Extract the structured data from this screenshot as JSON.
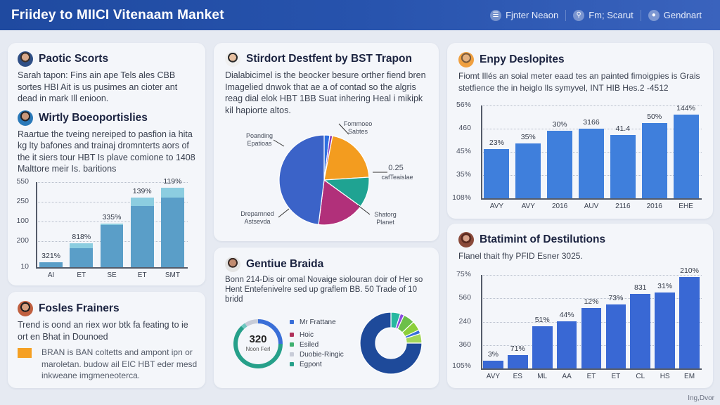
{
  "header": {
    "title": "Friidey to MIICI Vitenaam Manket",
    "actions": [
      {
        "label": "Fjnter Neaon",
        "icon": "filter-icon"
      },
      {
        "label": "Fm; Scarut",
        "icon": "search-icon"
      },
      {
        "label": "Gendnart",
        "icon": "user-icon"
      }
    ]
  },
  "cards": {
    "top_left": {
      "sections": [
        {
          "title": "Paotic Scorts",
          "text": "Sarah tapon: Fins ain ape Tels ales CBB sortes HBI Ait is us pusimes an cioter ant dead in mark Ill enioon."
        },
        {
          "title": "Wirtly Boeoportislies",
          "text": "Raartue the tveing nereiped to pasfion ia hita kg lty bafones and trainaj dromnterts aors of the it siers tour HBT Is plave comione to 1408 Malttore meir Is. baritions"
        }
      ]
    },
    "bottom_left": {
      "title": "Fosles Frainers",
      "text": "Trend is oond an riex wor btk fa feating to ie ort en Bhat in Dounoed",
      "note": "BRAN is BAN coltetts and ampont ipn or maroletan. budow ail EIC HBT eder mesd inkweane imgmeneoterca.",
      "note_swatch_color": "#f5a023"
    },
    "center_top": {
      "title": "Stirdort Destfent by BST Trapon",
      "text": "Dialabicimel is the beocker besure orther fiend bren Imagelied dnwok that ae a of contad so the algris reag dial elok HBT 1BB Suat inhering Heal i mikipk kil hapiorte altos."
    },
    "center_bottom": {
      "title": "Gentiue Braida",
      "text": "Bonn 214-Dis oir omal Novaige siolouran doir of Her so Hent Entefenivelre sed up graflem BB. 50 Trade of 10 bridd",
      "donut_value": "320",
      "donut_label": "Noon Ferl",
      "legend": [
        {
          "label": "Mr Frattane",
          "color": "#3a6fd8"
        },
        {
          "label": "Hoic",
          "color": "#b0315a"
        },
        {
          "label": "Esiled",
          "color": "#3fb070"
        },
        {
          "label": "Duobie-Ringic",
          "color": "#c8ccd8"
        },
        {
          "label": "Egpont",
          "color": "#26a08a"
        }
      ]
    },
    "right_top": {
      "title": "Enpy Deslopites",
      "text": "Fiomt Illés an soial meter eaad tes an painted fimoigpies is Grais stetfience the in heiglo lls symyvel, INT HIB Hes.2 -4512"
    },
    "right_bottom": {
      "title": "Btatimint of Destilutions",
      "text": "Flanel thait fhy PFID Esner 3025."
    }
  },
  "chart_data": [
    {
      "id": "left-stacked-bar",
      "type": "bar",
      "stacked": true,
      "title": "",
      "categories": [
        "AI",
        "ET",
        "SE",
        "ET",
        "SMT"
      ],
      "yticks": [
        "550",
        "250",
        "100",
        "200",
        "10"
      ],
      "series": [
        {
          "name": "base",
          "values": [
            15,
            58,
            130,
            190,
            215
          ],
          "color": "#5a9ec8"
        },
        {
          "name": "top",
          "values": [
            0,
            17,
            5,
            25,
            30
          ],
          "color": "#8ccde0"
        }
      ],
      "bar_labels": [
        "321%",
        "818%",
        "335%",
        "139%",
        "119%"
      ],
      "grid": true
    },
    {
      "id": "center-pie",
      "type": "pie",
      "slices": [
        {
          "label": "Poanding Epatioas",
          "value": 48,
          "color": "#3b63c8"
        },
        {
          "label": "Fommoeo Sabtes",
          "value": 2,
          "color": "#2f6fe0"
        },
        {
          "label": "",
          "value": 1,
          "color": "#8a3ab8"
        },
        {
          "label": "",
          "value": 21,
          "color": "#f39c1f"
        },
        {
          "label": "0.25 cafTeaislae",
          "value": 11,
          "color": "#1fa392"
        },
        {
          "label": "Shatorg Planet",
          "value": 17,
          "color": "#b1307a"
        }
      ],
      "labels": [
        "Poanding Epatioas",
        "Fommoeo Sabtes",
        "0.25",
        "cafTeaislae",
        "Shatorg Planet",
        "Dreparnned Astsevda"
      ]
    },
    {
      "id": "center-donut-ring",
      "type": "pie",
      "center_value": "320",
      "center_label": "Noon Ferl",
      "slices": [
        {
          "label": "Mr Frattane",
          "value": 25,
          "color": "#3a6fd8"
        },
        {
          "label": "Egpont",
          "value": 63,
          "color": "#26a08a"
        },
        {
          "label": "Esiled",
          "value": 3,
          "color": "#6fc7c0"
        },
        {
          "label": "Duobie-Ringic",
          "value": 9,
          "color": "#c8ccd8"
        }
      ]
    },
    {
      "id": "center-sunburst",
      "type": "pie",
      "inner": [
        {
          "value": 100,
          "color": "#f39c1f"
        }
      ],
      "outer": [
        {
          "value": 75,
          "color": "#1e4a9a"
        },
        {
          "value": 5,
          "color": "#27b8a0"
        },
        {
          "value": 2,
          "color": "#8a4ce0"
        },
        {
          "value": 6,
          "color": "#6cc04a"
        },
        {
          "value": 5,
          "color": "#8ccf3a"
        },
        {
          "value": 2,
          "color": "#3a6fd8"
        },
        {
          "value": 5,
          "color": "#a3d65a"
        }
      ]
    },
    {
      "id": "right-top-bar",
      "type": "bar",
      "categories": [
        "AVY",
        "AVY",
        "2016",
        "AUV",
        "2116",
        "2016",
        "EHE"
      ],
      "values": [
        48,
        54,
        66,
        68,
        62,
        74,
        82
      ],
      "bar_labels": [
        "23%",
        "35%",
        "30%",
        "3166",
        "41.4",
        "50%",
        "144%"
      ],
      "yticks": [
        "56%",
        "460",
        "45%",
        "35%",
        "108%"
      ],
      "color": "#3f7fdc",
      "grid": true
    },
    {
      "id": "right-bottom-bar",
      "type": "bar",
      "categories": [
        "AVY",
        "ES",
        "ML",
        "AA",
        "ET",
        "ET",
        "CL",
        "HS",
        "EM"
      ],
      "values": [
        10,
        17,
        55,
        61,
        78,
        83,
        96,
        98,
        118
      ],
      "bar_labels": [
        "3%",
        "71%",
        "51%",
        "44%",
        "12%",
        "73%",
        "831",
        "31%",
        "210%"
      ],
      "yticks": [
        "75%",
        "560",
        "240",
        "360",
        "105%"
      ],
      "color": "#3968d4",
      "grid": true
    }
  ],
  "footer": {
    "text": "Ing,Dvor"
  }
}
